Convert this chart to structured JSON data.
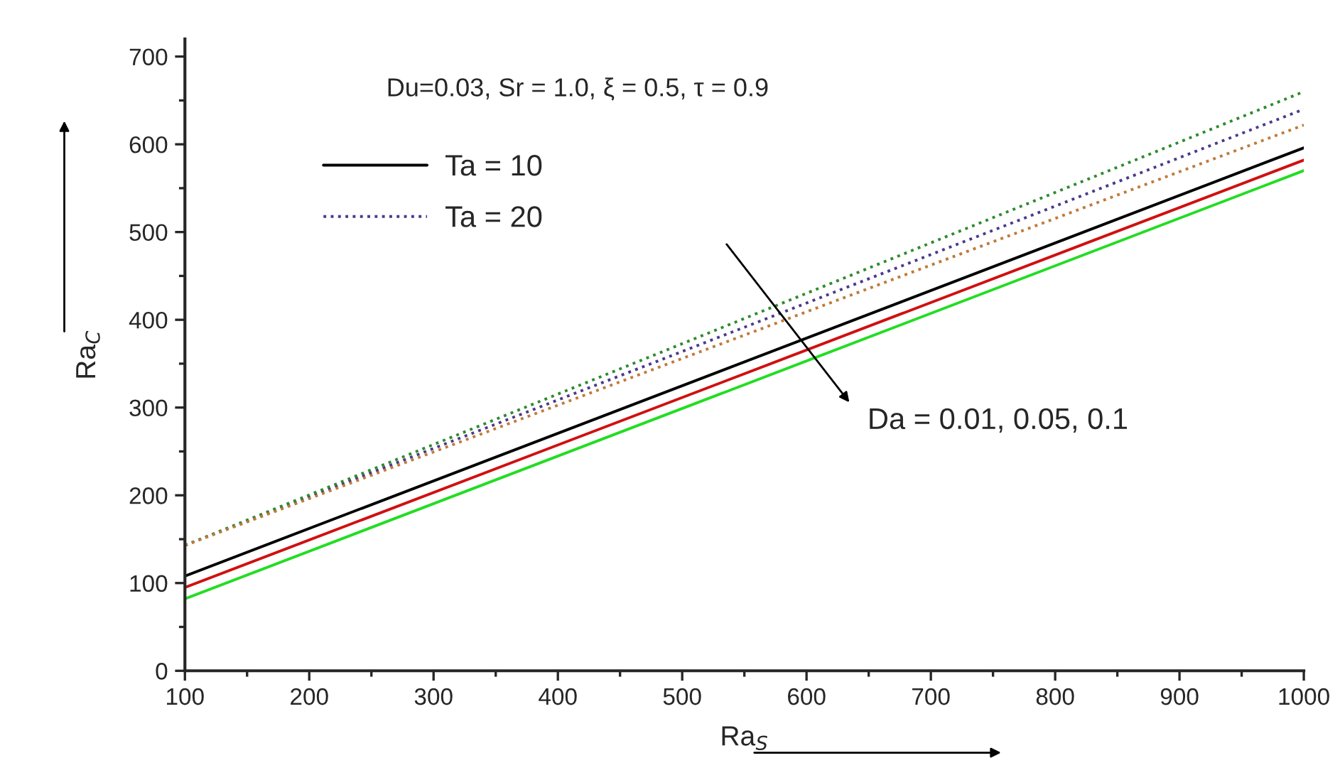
{
  "chart_data": {
    "type": "line",
    "xlabel": "Ra$_{S}$",
    "ylabel": "Ra$_{C}$",
    "x": [
      100,
      1000
    ],
    "series": [
      {
        "name": "Ta = 10",
        "color": "#000000",
        "values": [
          108,
          596
        ],
        "line_style": "solid"
      },
      {
        "color": "#d01010",
        "values": [
          95,
          582
        ],
        "line_style": "solid"
      },
      {
        "color": "#22dd22",
        "values": [
          82,
          570
        ],
        "line_style": "solid"
      },
      {
        "name": "Ta = 20",
        "color": "#4a3a8a",
        "values": [
          143,
          640
        ],
        "line_style": "dotted"
      },
      {
        "color": "#2e8b2e",
        "values": [
          143,
          660
        ],
        "line_style": "dotted"
      },
      {
        "color": "#c07a3a",
        "values": [
          143,
          622
        ],
        "line_style": "dotted"
      }
    ],
    "annotations": [
      "Du=0.03, Sr = 1.0, ξ = 0.5, τ = 0.9",
      "Da = 0.01, 0.05, 0.1"
    ],
    "xlim": [
      100,
      1000
    ],
    "ylim": [
      0,
      720
    ],
    "xticks": [
      100,
      200,
      300,
      400,
      500,
      600,
      700,
      800,
      900,
      1000
    ],
    "yticks": [
      0,
      100,
      200,
      300,
      400,
      500,
      600,
      700
    ],
    "grid": false,
    "legend": "top left",
    "marker": "none"
  }
}
